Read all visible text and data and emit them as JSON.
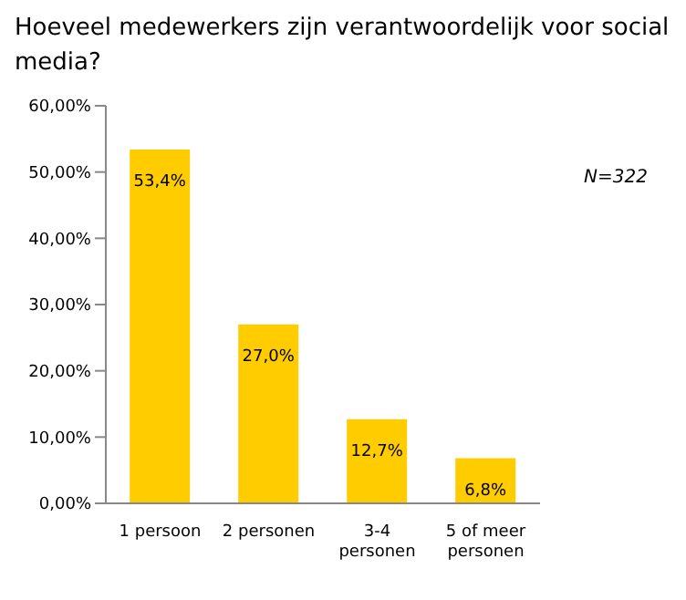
{
  "chart_data": {
    "type": "bar",
    "title": "Hoeveel medewerkers zijn verantwoordelijk voor social media?",
    "categories": [
      "1 persoon",
      "2 personen",
      "3-4 personen",
      "5 of meer personen"
    ],
    "values": [
      53.4,
      27.0,
      12.7,
      6.8
    ],
    "value_labels": [
      "53,4%",
      "27,0%",
      "12,7%",
      "6,8%"
    ],
    "color": "#ffcc00",
    "ylim": [
      0,
      60
    ],
    "yticks": [
      {
        "value": 0,
        "label": "0,00%"
      },
      {
        "value": 10,
        "label": "10,00%"
      },
      {
        "value": 20,
        "label": "20,00%"
      },
      {
        "value": 30,
        "label": "30,00%"
      },
      {
        "value": 40,
        "label": "40,00%"
      },
      {
        "value": 50,
        "label": "50,00%"
      },
      {
        "value": 60,
        "label": "60,00%"
      }
    ],
    "annotations": [
      "N=322"
    ],
    "grid": false,
    "legend": false
  }
}
